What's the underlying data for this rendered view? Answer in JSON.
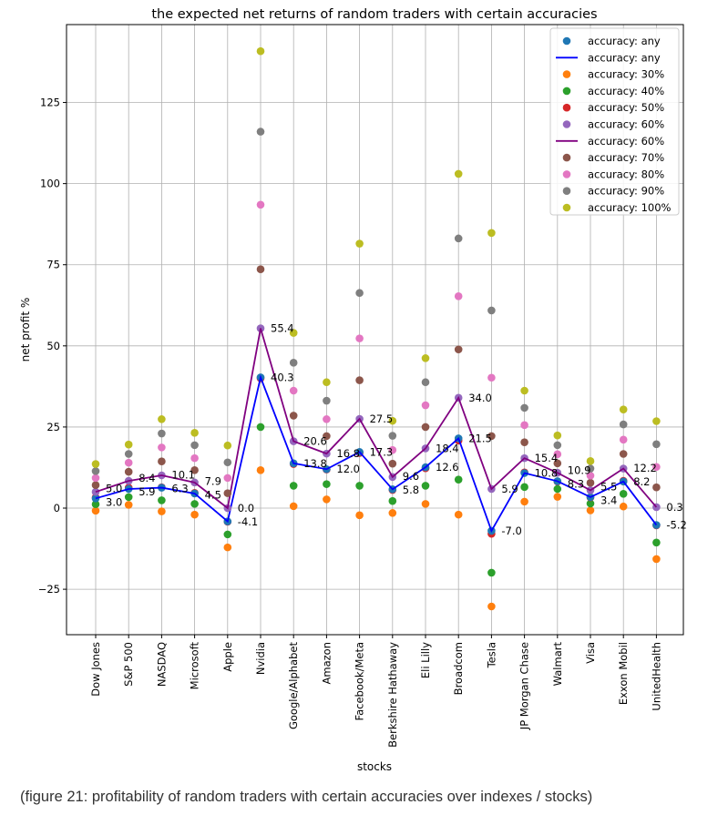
{
  "caption": "(figure 21: profitability of random traders with certain accuracies over indexes / stocks)",
  "chart_data": {
    "type": "scatter",
    "title": "the expected net returns of random traders with certain accuracies",
    "xlabel": "stocks",
    "ylabel": "net profit %",
    "ylim": [
      -39,
      149
    ],
    "yticks": [
      -25,
      0,
      25,
      50,
      75,
      100,
      125
    ],
    "grid": true,
    "legend_placement": "top-right",
    "categories": [
      "Dow Jones",
      "S&P 500",
      "NASDAQ",
      "Microsoft",
      "Apple",
      "Nvidia",
      "Google/Alphabet",
      "Amazon",
      "Facebook/Meta",
      "Berkshire Hathaway",
      "Eli Lilly",
      "Broadcom",
      "Tesla",
      "JP Morgan Chase",
      "Walmart",
      "Visa",
      "Exxon Mobil",
      "UnitedHealth"
    ],
    "series": [
      {
        "name": "accuracy: 30%",
        "kind": "scatter",
        "color": "#ff7f0e",
        "values": [
          -0.8,
          1.0,
          -1.0,
          -2.0,
          -12.1,
          11.7,
          0.6,
          2.7,
          -2.2,
          -1.5,
          1.3,
          -2.0,
          -30.3,
          2.0,
          3.5,
          -0.7,
          0.5,
          -15.7
        ]
      },
      {
        "name": "accuracy: 40%",
        "kind": "scatter",
        "color": "#2ca02c",
        "values": [
          1.2,
          3.4,
          2.4,
          1.3,
          -8.1,
          25.0,
          6.9,
          7.4,
          6.9,
          2.2,
          6.9,
          8.8,
          -19.9,
          6.5,
          5.9,
          1.4,
          4.4,
          -10.6
        ]
      },
      {
        "name": "accuracy: 50%",
        "kind": "scatter",
        "color": "#d62728",
        "values": [
          3.3,
          6.3,
          6.4,
          4.7,
          -4.2,
          40.0,
          13.6,
          11.9,
          17.0,
          5.6,
          12.3,
          20.8,
          -7.9,
          11.0,
          8.2,
          3.3,
          8.4,
          -5.3
        ]
      },
      {
        "name": "accuracy: any",
        "kind": "scatter",
        "color": "#1f77b4",
        "values": [
          3.0,
          5.9,
          6.3,
          4.5,
          -4.1,
          40.3,
          13.8,
          12.0,
          17.3,
          5.8,
          12.6,
          21.5,
          -7.0,
          10.8,
          8.3,
          3.4,
          8.2,
          -5.2
        ]
      },
      {
        "name": "accuracy: any",
        "kind": "line",
        "color": "#0000ff",
        "labels": true,
        "values": [
          3.0,
          5.9,
          6.3,
          4.5,
          -4.1,
          40.3,
          13.8,
          12.0,
          17.3,
          5.8,
          12.6,
          21.5,
          -7.0,
          10.8,
          8.3,
          3.4,
          8.2,
          -5.2
        ]
      },
      {
        "name": "accuracy: 60%",
        "kind": "scatter",
        "color": "#9467bd",
        "values": [
          5.0,
          8.4,
          10.1,
          7.9,
          0.0,
          55.4,
          20.6,
          16.8,
          27.5,
          9.6,
          18.4,
          34.0,
          5.9,
          15.4,
          10.9,
          5.5,
          12.2,
          0.3
        ]
      },
      {
        "name": "accuracy: 60%",
        "kind": "line",
        "color": "#800080",
        "labels": true,
        "values": [
          5.0,
          8.4,
          10.1,
          7.9,
          0.0,
          55.4,
          20.6,
          16.8,
          27.5,
          9.6,
          18.4,
          34.0,
          5.9,
          15.4,
          10.9,
          5.5,
          12.2,
          0.3
        ]
      },
      {
        "name": "accuracy: 70%",
        "kind": "scatter",
        "color": "#8c564b",
        "values": [
          7.1,
          11.2,
          14.4,
          11.7,
          4.6,
          73.6,
          28.5,
          22.2,
          39.4,
          13.7,
          25.0,
          48.9,
          22.2,
          20.3,
          13.8,
          7.8,
          16.7,
          6.4
        ]
      },
      {
        "name": "accuracy: 80%",
        "kind": "scatter",
        "color": "#e377c2",
        "values": [
          9.3,
          14.0,
          18.7,
          15.4,
          9.3,
          93.5,
          36.2,
          27.4,
          52.3,
          17.9,
          31.7,
          65.3,
          40.2,
          25.6,
          16.6,
          10.0,
          21.1,
          12.7
        ]
      },
      {
        "name": "accuracy: 90%",
        "kind": "scatter",
        "color": "#7f7f7f",
        "values": [
          11.4,
          16.7,
          23.0,
          19.4,
          14.1,
          116.0,
          44.8,
          33.1,
          66.3,
          22.3,
          38.8,
          83.1,
          60.9,
          30.9,
          19.4,
          12.2,
          25.8,
          19.7
        ]
      },
      {
        "name": "accuracy: 100%",
        "kind": "scatter",
        "color": "#bcbd22",
        "values": [
          13.6,
          19.6,
          27.4,
          23.2,
          19.3,
          140.8,
          54.0,
          38.8,
          81.5,
          26.9,
          46.2,
          103.0,
          84.8,
          36.2,
          22.4,
          14.5,
          30.4,
          26.8
        ]
      }
    ],
    "legend_order": [
      3,
      4,
      0,
      1,
      2,
      5,
      6,
      7,
      8,
      9,
      10
    ]
  }
}
